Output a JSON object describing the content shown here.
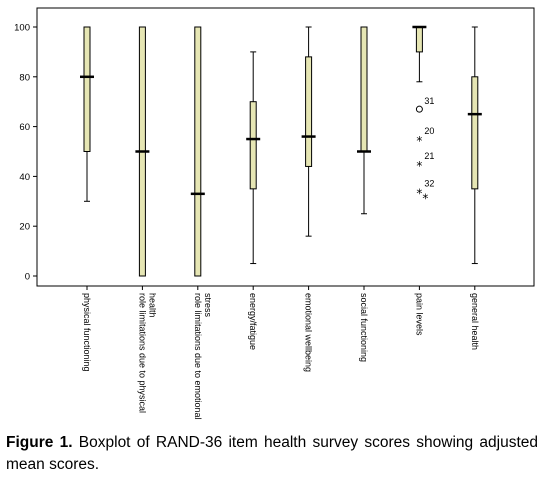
{
  "chart_data": {
    "type": "boxplot",
    "ylim": [
      0,
      100
    ],
    "yticks": [
      0,
      20,
      40,
      60,
      80,
      100
    ],
    "categories": [
      "physical functioning",
      "role limitations due to physical health",
      "role limitations due to emotional stress",
      "energy/fatigue",
      "emotional wellbeing",
      "social functioning",
      "pain levels",
      "general health"
    ],
    "x_label_lines": [
      [
        "physical functioning"
      ],
      [
        "role limitations due to physical",
        "health"
      ],
      [
        "role limitations due to emotional",
        "stress"
      ],
      [
        "energy/fatigue"
      ],
      [
        "emotional wellbeing"
      ],
      [
        "social functioning"
      ],
      [
        "pain levels"
      ],
      [
        "general health"
      ]
    ],
    "boxes": [
      {
        "min": 30,
        "q1": 50,
        "median": 80,
        "q3": 100,
        "max": 100
      },
      {
        "min": 0,
        "q1": 0,
        "median": 50,
        "q3": 100,
        "max": 100
      },
      {
        "min": 0,
        "q1": 0,
        "median": 33,
        "q3": 100,
        "max": 100
      },
      {
        "min": 5,
        "q1": 35,
        "median": 55,
        "q3": 70,
        "max": 90
      },
      {
        "min": 16,
        "q1": 44,
        "median": 56,
        "q3": 88,
        "max": 100
      },
      {
        "min": 25,
        "q1": 50,
        "median": 50,
        "q3": 100,
        "max": 100
      },
      {
        "min": 78,
        "q1": 90,
        "median": 100,
        "q3": 100,
        "max": 100
      },
      {
        "min": 5,
        "q1": 35,
        "median": 65,
        "q3": 80,
        "max": 100
      }
    ],
    "outliers": [
      {
        "category": "pain levels",
        "value": 67,
        "marker": "circle",
        "label": "31"
      },
      {
        "category": "pain levels",
        "value": 55,
        "marker": "star",
        "label": "20"
      },
      {
        "category": "pain levels",
        "value": 45,
        "marker": "star",
        "label": "21"
      },
      {
        "category": "pain levels",
        "value": 34,
        "marker": "star",
        "label": "32"
      },
      {
        "category": "pain levels",
        "value": 32,
        "marker": "star",
        "label": ""
      }
    ],
    "colors": {
      "box_fill": "#e6e6b4",
      "box_stroke": "#000000",
      "frame": "#000000"
    }
  },
  "caption": {
    "label": "Figure 1.",
    "text": " Boxplot of RAND-36 item health survey scores showing adjusted mean scores."
  }
}
